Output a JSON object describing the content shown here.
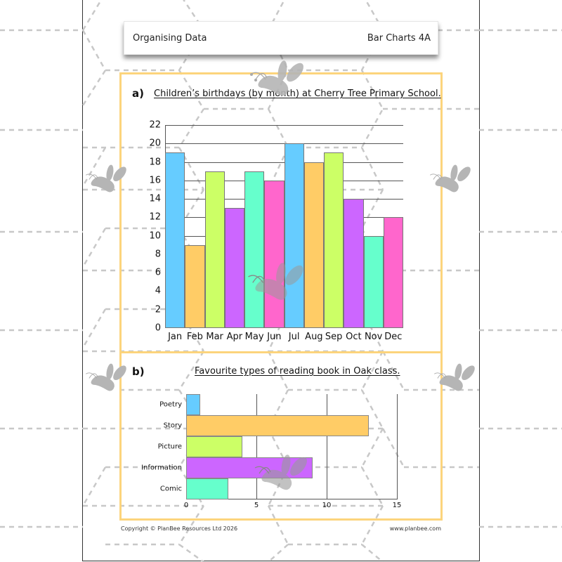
{
  "header": {
    "left": "Organising Data",
    "right": "Bar Charts 4A"
  },
  "section_a": {
    "label": "a)",
    "title": "Children’s birthdays (by month) at Cherry Tree Primary School."
  },
  "section_b": {
    "label": "b)",
    "title": "Favourite types of reading book in Oak class."
  },
  "footer": {
    "copyright": "Copyright © PlanBee Resources Ltd 2026",
    "website": "www.planbee.com"
  },
  "colors": {
    "blue": "#66CCFF",
    "orange": "#FFCC66",
    "lime": "#CCFF66",
    "purple": "#CC66FF",
    "mint": "#66FFCC",
    "pink": "#FF66CC",
    "frame": "#FCD47C"
  },
  "chart_data": [
    {
      "type": "bar",
      "orientation": "vertical",
      "title": "Children’s birthdays (by month) at Cherry Tree Primary School.",
      "xlabel": "",
      "ylabel": "",
      "categories": [
        "Jan",
        "Feb",
        "Mar",
        "Apr",
        "May",
        "Jun",
        "Jul",
        "Aug",
        "Sep",
        "Oct",
        "Nov",
        "Dec"
      ],
      "values": [
        19,
        9,
        17,
        13,
        17,
        16,
        20,
        18,
        19,
        14,
        10,
        12
      ],
      "bar_colors": [
        "#66CCFF",
        "#FFCC66",
        "#CCFF66",
        "#CC66FF",
        "#66FFCC",
        "#FF66CC",
        "#66CCFF",
        "#FFCC66",
        "#CCFF66",
        "#CC66FF",
        "#66FFCC",
        "#FF66CC"
      ],
      "ylim": [
        0,
        22
      ],
      "yticks": [
        "0",
        "2",
        "4",
        "6",
        "8",
        "10",
        "12",
        "14",
        "16",
        "18",
        "20",
        "22"
      ],
      "grid": true,
      "legend": null
    },
    {
      "type": "bar",
      "orientation": "horizontal",
      "title": "Favourite types of reading book in Oak class.",
      "xlabel": "",
      "ylabel": "",
      "categories": [
        "Poetry",
        "Story",
        "Picture",
        "Information",
        "Comic"
      ],
      "values": [
        1,
        13,
        4,
        9,
        3
      ],
      "bar_colors": [
        "#66CCFF",
        "#FFCC66",
        "#CCFF66",
        "#CC66FF",
        "#66FFCC"
      ],
      "xlim": [
        0,
        15
      ],
      "xticks": [
        "0",
        "5",
        "10",
        "15"
      ],
      "grid": true,
      "legend": null
    }
  ]
}
